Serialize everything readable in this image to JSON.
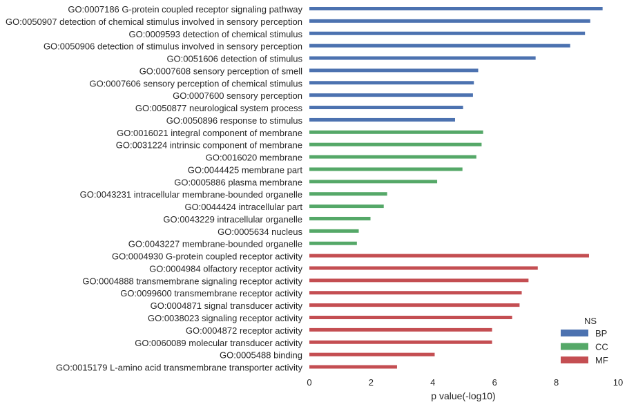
{
  "chart_data": {
    "type": "bar",
    "orientation": "horizontal",
    "title": "",
    "xlabel": "p value(-log10)",
    "ylabel": "",
    "xlim": [
      0,
      10
    ],
    "xticks": [
      "0",
      "2",
      "4",
      "6",
      "8",
      "10"
    ],
    "grid": false,
    "legend": {
      "title": "NS",
      "placement": "bottom-right"
    },
    "series": [
      {
        "name": "BP",
        "color": "#4c72b0",
        "categories": [
          "GO:0007186 G-protein coupled receptor signaling pathway",
          "GO:0050907 detection of chemical stimulus involved in sensory perception",
          "GO:0009593 detection of chemical stimulus",
          "GO:0050906 detection of stimulus involved in sensory perception",
          "GO:0051606 detection of stimulus",
          "GO:0007608 sensory perception of smell",
          "GO:0007606 sensory perception of chemical stimulus",
          "GO:0007600 sensory perception",
          "GO:0050877 neurological system process",
          "GO:0050896 response to stimulus"
        ],
        "values": [
          9.5,
          9.1,
          8.93,
          8.45,
          7.33,
          5.47,
          5.33,
          5.3,
          4.98,
          4.72
        ]
      },
      {
        "name": "CC",
        "color": "#55a868",
        "categories": [
          "GO:0016021 integral component of membrane",
          "GO:0031224 intrinsic component of membrane",
          "GO:0016020 membrane",
          "GO:0044425 membrane part",
          "GO:0005886 plasma membrane",
          "GO:0043231 intracellular membrane-bounded organelle",
          "GO:0044424 intracellular part",
          "GO:0043229 intracellular organelle",
          "GO:0005634 nucleus",
          "GO:0043227 membrane-bounded organelle"
        ],
        "values": [
          5.63,
          5.58,
          5.41,
          4.96,
          4.14,
          2.52,
          2.41,
          1.98,
          1.6,
          1.54
        ]
      },
      {
        "name": "MF",
        "color": "#c44e52",
        "categories": [
          "GO:0004930 G-protein coupled receptor activity",
          "GO:0004984 olfactory receptor activity",
          "GO:0004888 transmembrane signaling receptor activity",
          "GO:0099600 transmembrane receptor activity",
          "GO:0004871 signal transducer activity",
          "GO:0038023 signaling receptor activity",
          "GO:0004872 receptor activity",
          "GO:0060089 molecular transducer activity",
          "GO:0005488 binding",
          "GO:0015179 L-amino acid transmembrane transporter activity"
        ],
        "values": [
          9.06,
          7.4,
          7.1,
          6.88,
          6.81,
          6.57,
          5.92,
          5.92,
          4.06,
          2.84
        ]
      }
    ]
  }
}
